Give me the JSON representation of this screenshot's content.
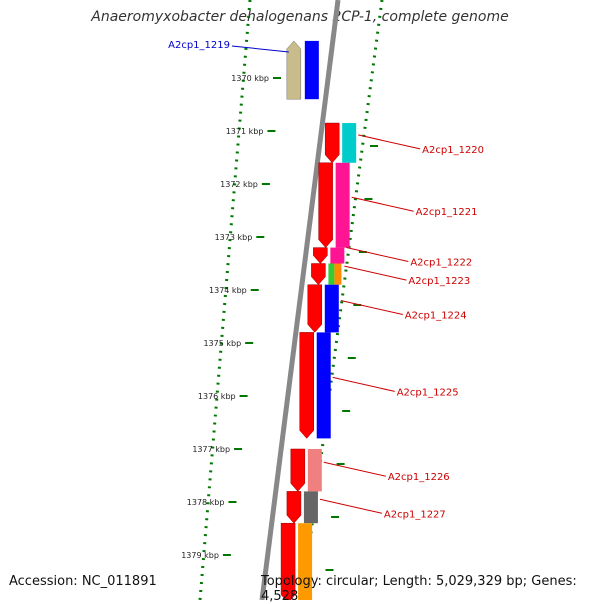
{
  "title": "Anaeromyxobacter dehalogenans 2CP-1, complete genome",
  "accession": "Accession: NC_011891",
  "topology": "Topology: circular; Length: 5,029,329 bp; Genes: 4,528",
  "colors": {
    "forward_gene": "#ff0000",
    "reverse_gene": "#c8bc8a",
    "left_gene_label": "#0000cc",
    "right_gene_label": "#cc0000",
    "tick": "#007700",
    "backbone": "#888888"
  },
  "ticks": [
    {
      "label": "1370 kbp",
      "kbp": 1370
    },
    {
      "label": "1371 kbp",
      "kbp": 1371
    },
    {
      "label": "1372 kbp",
      "kbp": 1372
    },
    {
      "label": "1373 kbp",
      "kbp": 1373
    },
    {
      "label": "1374 kbp",
      "kbp": 1374
    },
    {
      "label": "1375 kbp",
      "kbp": 1375
    },
    {
      "label": "1376 kbp",
      "kbp": 1376
    },
    {
      "label": "1377 kbp",
      "kbp": 1377
    },
    {
      "label": "1378 kbp",
      "kbp": 1378
    },
    {
      "label": "1379 kbp",
      "kbp": 1379
    }
  ],
  "genes": [
    {
      "label": "A2cp1_1219",
      "strand": "reverse",
      "start_kbp": 1369.3,
      "end_kbp": 1370.4,
      "cog_color": "#0000ff"
    },
    {
      "label": "A2cp1_1220",
      "strand": "forward",
      "start_kbp": 1370.85,
      "end_kbp": 1371.6,
      "cog_color": "#00cccc"
    },
    {
      "label": "A2cp1_1221",
      "strand": "forward",
      "start_kbp": 1371.6,
      "end_kbp": 1373.2,
      "cog_color": "#ff1493"
    },
    {
      "label": "A2cp1_1222",
      "strand": "forward",
      "start_kbp": 1373.2,
      "end_kbp": 1373.5,
      "cog_color": "#ff1493"
    },
    {
      "label": "A2cp1_1223",
      "strand": "forward",
      "start_kbp": 1373.5,
      "end_kbp": 1373.9,
      "cog_color": "#ff8c00",
      "cog_color2": "#33cc33"
    },
    {
      "label": "A2cp1_1224",
      "strand": "forward",
      "start_kbp": 1373.9,
      "end_kbp": 1374.8,
      "cog_color": "#0000ff"
    },
    {
      "label": "A2cp1_1225",
      "strand": "forward",
      "start_kbp": 1374.8,
      "end_kbp": 1376.8,
      "cog_color": "#0000ff"
    },
    {
      "label": "A2cp1_1226",
      "strand": "forward",
      "start_kbp": 1377.0,
      "end_kbp": 1377.8,
      "cog_color": "#f08080"
    },
    {
      "label": "A2cp1_1227",
      "strand": "forward",
      "start_kbp": 1377.8,
      "end_kbp": 1378.4,
      "cog_color": "#666666"
    },
    {
      "label": "",
      "strand": "forward",
      "start_kbp": 1378.4,
      "end_kbp": 1379.9,
      "cog_color": "#ff9900"
    }
  ]
}
